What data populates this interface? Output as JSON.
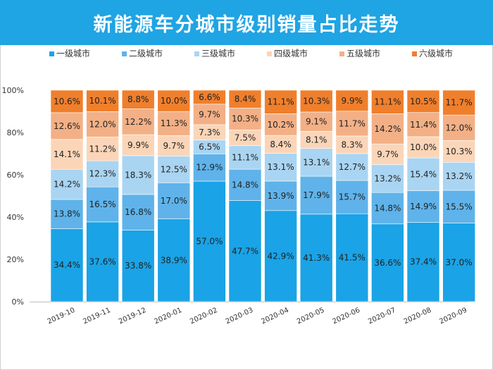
{
  "chart_data": {
    "type": "bar",
    "stacked": true,
    "title": "新能源车分城市级别销量占比走势",
    "xlabel": "",
    "ylabel": "",
    "ylim": [
      0,
      100
    ],
    "yticks": [
      "0%",
      "20%",
      "40%",
      "60%",
      "80%",
      "100%"
    ],
    "categories": [
      "2019-10",
      "2019-11",
      "2019-12",
      "2020-01",
      "2020-02",
      "2020-03",
      "2020-04",
      "2020-05",
      "2020-06",
      "2020-07",
      "2020-08",
      "2020-09"
    ],
    "legend_position": "top",
    "series": [
      {
        "name": "一级城市",
        "color": "#1aa3e6",
        "values": [
          34.4,
          37.6,
          33.8,
          38.9,
          57.0,
          47.7,
          42.9,
          41.3,
          41.5,
          36.6,
          37.4,
          37.0
        ],
        "labels": [
          "34.4%",
          "37.6%",
          "33.8%",
          "38.9%",
          "57.0%",
          "47.7%",
          "42.9%",
          "41.3%",
          "41.5%",
          "36.6%",
          "37.4%",
          "37.0%"
        ]
      },
      {
        "name": "二级城市",
        "color": "#5fb3ea",
        "values": [
          13.8,
          16.5,
          16.8,
          17.0,
          12.9,
          14.8,
          13.9,
          17.9,
          15.7,
          14.8,
          14.9,
          15.5
        ],
        "labels": [
          "13.8%",
          "16.5%",
          "16.8%",
          "17.0%",
          "12.9%",
          "14.8%",
          "13.9%",
          "17.9%",
          "15.7%",
          "14.8%",
          "14.9%",
          "15.5%"
        ]
      },
      {
        "name": "三级城市",
        "color": "#a9d5f2",
        "values": [
          14.2,
          12.3,
          18.3,
          12.5,
          6.5,
          11.1,
          13.1,
          13.1,
          12.7,
          13.2,
          15.4,
          13.2
        ],
        "labels": [
          "14.2%",
          "12.3%",
          "18.3%",
          "12.5%",
          "6.5%",
          "11.1%",
          "13.1%",
          "13.1%",
          "12.7%",
          "13.2%",
          "15.4%",
          "13.2%"
        ]
      },
      {
        "name": "四级城市",
        "color": "#fbd5b8",
        "values": [
          14.1,
          11.2,
          9.9,
          9.7,
          7.3,
          7.5,
          8.4,
          8.1,
          8.3,
          9.7,
          10.0,
          10.3
        ],
        "labels": [
          "14.1%",
          "11.2%",
          "9.9%",
          "9.7%",
          "7.3%",
          "7.5%",
          "8.4%",
          "8.1%",
          "8.3%",
          "9.7%",
          "10.0%",
          "10.3%"
        ]
      },
      {
        "name": "五级城市",
        "color": "#f3b086",
        "values": [
          12.6,
          12.0,
          12.2,
          11.3,
          9.7,
          10.3,
          10.2,
          9.1,
          11.7,
          14.2,
          11.4,
          12.0
        ],
        "labels": [
          "12.6%",
          "12.0%",
          "12.2%",
          "11.3%",
          "9.7%",
          "10.3%",
          "10.2%",
          "9.1%",
          "11.7%",
          "14.2%",
          "11.4%",
          "12.0%"
        ]
      },
      {
        "name": "六级城市",
        "color": "#f07f2c",
        "values": [
          10.6,
          10.1,
          8.8,
          10.0,
          6.6,
          8.4,
          11.1,
          10.3,
          9.9,
          11.1,
          10.5,
          11.7
        ],
        "labels": [
          "10.6%",
          "10.1%",
          "8.8%",
          "10.0%",
          "6.6%",
          "8.4%",
          "11.1%",
          "10.3%",
          "9.9%",
          "11.1%",
          "10.5%",
          "11.7%"
        ]
      }
    ]
  }
}
